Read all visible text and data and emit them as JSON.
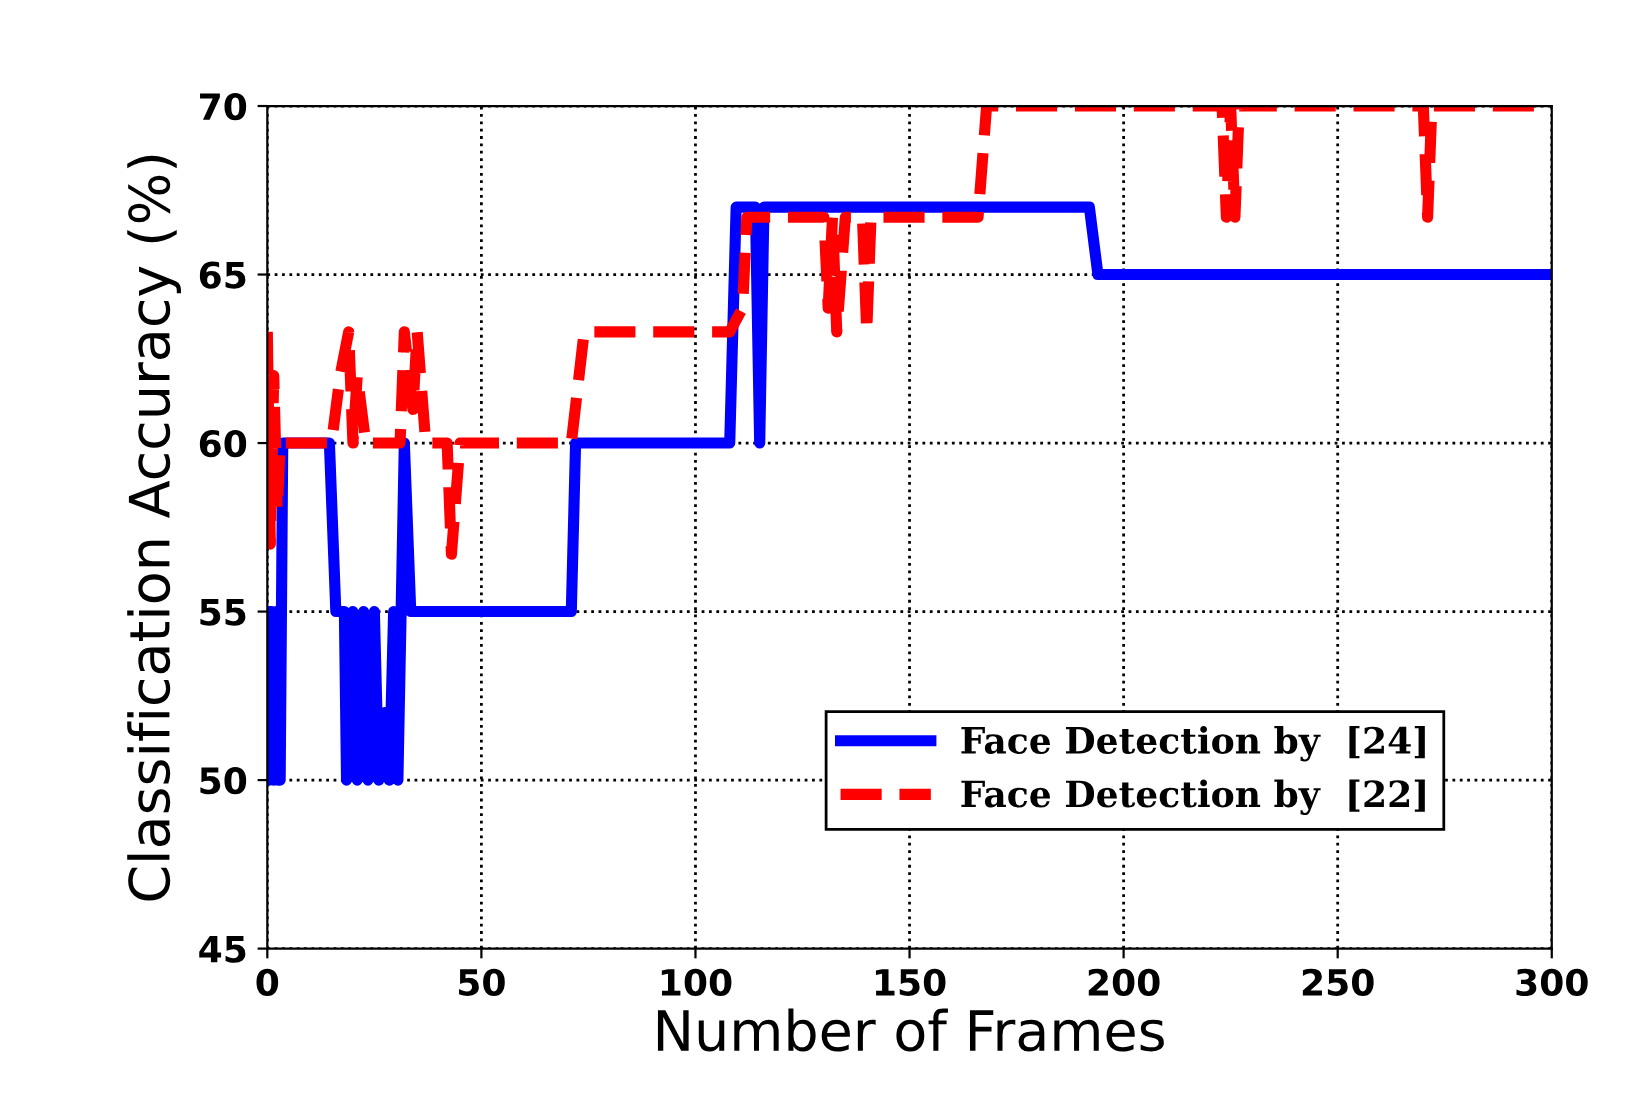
{
  "chart_data": {
    "type": "line",
    "xlabel": "Number of Frames",
    "ylabel": "Classification Accuracy (%)",
    "xlim": [
      0,
      300
    ],
    "ylim": [
      45,
      70
    ],
    "xticks": [
      0,
      50,
      100,
      150,
      200,
      250,
      300
    ],
    "yticks": [
      45,
      50,
      55,
      60,
      65,
      70
    ],
    "grid": true,
    "legend": "bottom right",
    "series": [
      {
        "name": "Face Detection by  [24]",
        "color": "#0000ff",
        "line_style": "solid",
        "x": [
          0,
          0.5,
          1,
          1.5,
          2,
          2.5,
          3,
          3.6,
          14.5,
          16,
          18,
          18.5,
          20,
          21,
          22.5,
          23.5,
          25,
          26,
          27.5,
          28.5,
          29.5,
          30.5,
          32,
          33.5,
          71,
          72,
          108,
          109.5,
          114,
          115,
          116,
          192,
          194,
          300
        ],
        "values": [
          55,
          50,
          55,
          50,
          55,
          50,
          50,
          60,
          60,
          55,
          55,
          50,
          55,
          50,
          55,
          50,
          55,
          50,
          52,
          50,
          55,
          50,
          60,
          55,
          55,
          60,
          60,
          67,
          67,
          60,
          67,
          67,
          65,
          65
        ]
      },
      {
        "name": "Face Detection by  [22]",
        "color": "#ff0000",
        "line_style": "dashed",
        "x": [
          0,
          0.7,
          1.5,
          2.3,
          3,
          15,
          17,
          19,
          20,
          21,
          23,
          31,
          32,
          34,
          35,
          37,
          42,
          43,
          45,
          71,
          74,
          108,
          111,
          112,
          130,
          131,
          132,
          133,
          135,
          139,
          140,
          141,
          166,
          168,
          223,
          224,
          225,
          226,
          227,
          270,
          271,
          272,
          300
        ],
        "values": [
          63.3,
          57,
          62,
          58,
          60,
          60,
          62,
          63.3,
          60,
          62,
          60,
          60,
          63.3,
          61,
          63.3,
          60,
          60,
          56.7,
          60,
          60,
          63.3,
          63.3,
          64,
          66.7,
          66.7,
          64,
          66.7,
          63.3,
          66.7,
          66.7,
          63.3,
          66.7,
          66.7,
          70,
          70,
          66.7,
          70,
          66.7,
          70,
          70,
          66.7,
          70,
          70
        ]
      }
    ]
  }
}
